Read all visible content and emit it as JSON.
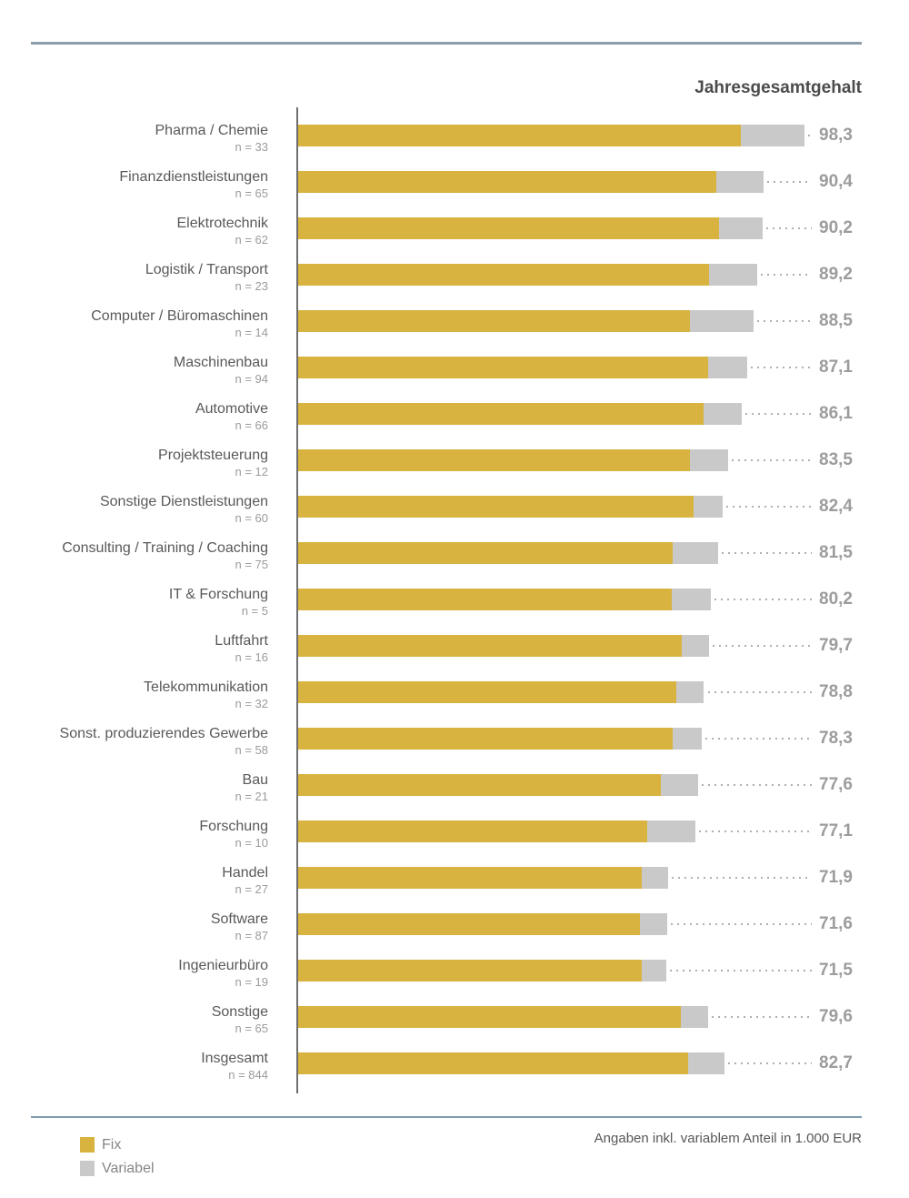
{
  "chart_data": {
    "type": "bar",
    "orientation": "horizontal",
    "stacked": true,
    "grid": false,
    "title": "Jahresgesamtgehalt",
    "note": "Angaben inkl. variablem Anteil in 1.000 EUR",
    "value_unit": "1.000 EUR",
    "xlim": [
      0,
      105
    ],
    "legend_position": "bottom-left",
    "legend_entries": [
      {
        "name": "Fix",
        "color": "#d8b33f"
      },
      {
        "name": "Variabel",
        "color": "#c9c9c9"
      }
    ],
    "series_names": [
      "Fix",
      "Variabel"
    ],
    "rows": [
      {
        "label": "Pharma / Chemie",
        "n_label": "n = 33",
        "fix": 85.9,
        "variabel": 12.4,
        "total": 98.3,
        "total_label": "98,3"
      },
      {
        "label": "Finanzdienstleistungen",
        "n_label": "n = 65",
        "fix": 81.2,
        "variabel": 9.2,
        "total": 90.4,
        "total_label": "90,4"
      },
      {
        "label": "Elektrotechnik",
        "n_label": "n = 62",
        "fix": 81.7,
        "variabel": 8.5,
        "total": 90.2,
        "total_label": "90,2"
      },
      {
        "label": "Logistik / Transport",
        "n_label": "n = 23",
        "fix": 79.8,
        "variabel": 9.4,
        "total": 89.2,
        "total_label": "89,2"
      },
      {
        "label": "Computer / Büromaschinen",
        "n_label": "n = 14",
        "fix": 76.1,
        "variabel": 12.4,
        "total": 88.5,
        "total_label": "88,5"
      },
      {
        "label": "Maschinenbau",
        "n_label": "n = 94",
        "fix": 79.6,
        "variabel": 7.5,
        "total": 87.1,
        "total_label": "87,1"
      },
      {
        "label": "Automotive",
        "n_label": "n = 66",
        "fix": 78.7,
        "variabel": 7.4,
        "total": 86.1,
        "total_label": "86,1"
      },
      {
        "label": "Projektsteuerung",
        "n_label": "n = 12",
        "fix": 76.1,
        "variabel": 7.4,
        "total": 83.5,
        "total_label": "83,5"
      },
      {
        "label": "Sonstige Dienstleistungen",
        "n_label": "n = 60",
        "fix": 76.8,
        "variabel": 5.6,
        "total": 82.4,
        "total_label": "82,4"
      },
      {
        "label": "Consulting / Training / Coaching",
        "n_label": "n = 75",
        "fix": 72.7,
        "variabel": 8.8,
        "total": 81.5,
        "total_label": "81,5"
      },
      {
        "label": "IT & Forschung",
        "n_label": "n = 5",
        "fix": 72.5,
        "variabel": 7.7,
        "total": 80.2,
        "total_label": "80,2"
      },
      {
        "label": "Luftfahrt",
        "n_label": "n = 16",
        "fix": 74.5,
        "variabel": 5.2,
        "total": 79.7,
        "total_label": "79,7"
      },
      {
        "label": "Telekommunikation",
        "n_label": "n = 32",
        "fix": 73.4,
        "variabel": 5.4,
        "total": 78.8,
        "total_label": "78,8"
      },
      {
        "label": "Sonst. produzierendes Gewerbe",
        "n_label": "n = 58",
        "fix": 72.7,
        "variabel": 5.6,
        "total": 78.3,
        "total_label": "78,3"
      },
      {
        "label": "Bau",
        "n_label": "n = 21",
        "fix": 70.4,
        "variabel": 7.2,
        "total": 77.6,
        "total_label": "77,6"
      },
      {
        "label": "Forschung",
        "n_label": "n = 10",
        "fix": 67.8,
        "variabel": 9.3,
        "total": 77.1,
        "total_label": "77,1"
      },
      {
        "label": "Handel",
        "n_label": "n = 27",
        "fix": 66.7,
        "variabel": 5.2,
        "total": 71.9,
        "total_label": "71,9"
      },
      {
        "label": "Software",
        "n_label": "n = 87",
        "fix": 66.4,
        "variabel": 5.2,
        "total": 71.6,
        "total_label": "71,6"
      },
      {
        "label": "Ingenieurbüro",
        "n_label": "n = 19",
        "fix": 66.7,
        "variabel": 4.8,
        "total": 71.5,
        "total_label": "71,5"
      },
      {
        "label": "Sonstige",
        "n_label": "n = 65",
        "fix": 74.3,
        "variabel": 5.3,
        "total": 79.6,
        "total_label": "79,6"
      },
      {
        "label": "Insgesamt",
        "n_label": "n = 844",
        "fix": 75.7,
        "variabel": 7.0,
        "total": 82.7,
        "total_label": "82,7"
      }
    ]
  },
  "colors": {
    "fix": "#d8b33f",
    "variabel": "#c9c9c9",
    "axis": "#6f6f6f",
    "rule_top": "#8d9da9",
    "rule_bottom": "#7e9db1",
    "value_text": "#9c9c9c",
    "category_text": "#595959",
    "n_text": "#9b9b9b"
  }
}
